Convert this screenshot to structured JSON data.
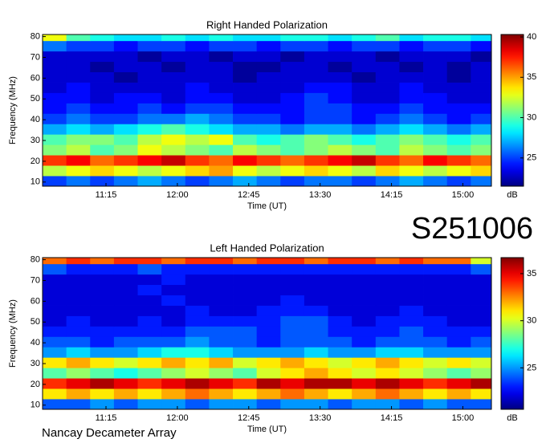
{
  "chart_data": [
    {
      "type": "heatmap",
      "title": "Right Handed Polarization",
      "xlabel": "Time (UT)",
      "ylabel": "Frequency (MHz)",
      "x_bins": [
        635,
        650,
        665,
        680,
        695,
        710,
        725,
        740,
        755,
        770,
        785,
        800,
        815,
        830,
        845,
        860,
        875,
        890,
        905,
        918
      ],
      "y_bins": [
        8,
        13,
        18,
        23,
        28,
        33,
        38,
        43,
        48,
        53,
        58,
        63,
        68,
        73,
        78,
        81
      ],
      "values": [
        [
          25,
          26,
          25,
          26,
          27,
          26,
          25,
          26,
          27,
          26,
          25,
          26,
          26,
          25,
          26,
          27,
          26,
          25,
          26
        ],
        [
          32,
          33,
          34,
          33,
          32,
          33,
          34,
          35,
          33,
          32,
          33,
          34,
          33,
          32,
          34,
          33,
          32,
          33,
          34
        ],
        [
          37,
          38,
          36,
          37,
          38,
          39,
          37,
          36,
          38,
          37,
          36,
          37,
          38,
          39,
          37,
          36,
          38,
          37,
          36
        ],
        [
          31,
          32,
          30,
          31,
          33,
          32,
          31,
          30,
          32,
          31,
          30,
          31,
          32,
          31,
          30,
          32,
          31,
          30,
          31
        ],
        [
          30,
          31,
          31,
          30,
          32,
          33,
          32,
          33,
          30,
          29,
          30,
          31,
          30,
          29,
          30,
          31,
          30,
          29,
          30
        ],
        [
          27,
          28,
          27,
          28,
          29,
          30,
          29,
          28,
          27,
          27,
          26,
          27,
          27,
          26,
          27,
          28,
          27,
          26,
          27
        ],
        [
          25,
          26,
          25,
          25,
          26,
          26,
          27,
          26,
          25,
          25,
          24,
          25,
          25,
          24,
          25,
          26,
          25,
          24,
          25
        ],
        [
          24,
          25,
          24,
          24,
          25,
          24,
          25,
          25,
          24,
          24,
          24,
          25,
          25,
          24,
          24,
          25,
          24,
          24,
          24
        ],
        [
          24,
          24,
          23,
          24,
          24,
          23,
          24,
          24,
          23,
          23,
          24,
          25,
          24,
          23,
          23,
          24,
          24,
          23,
          23
        ],
        [
          23,
          24,
          23,
          23,
          23,
          23,
          24,
          23,
          23,
          23,
          23,
          24,
          24,
          23,
          23,
          24,
          23,
          23,
          23
        ],
        [
          23,
          23,
          23,
          22,
          23,
          23,
          23,
          23,
          22,
          23,
          23,
          23,
          23,
          22,
          23,
          23,
          23,
          22,
          23
        ],
        [
          23,
          23,
          22,
          23,
          23,
          22,
          23,
          23,
          22,
          22,
          23,
          23,
          22,
          23,
          23,
          22,
          23,
          22,
          23
        ],
        [
          23,
          23,
          23,
          23,
          22,
          23,
          23,
          22,
          23,
          23,
          22,
          23,
          23,
          23,
          22,
          23,
          23,
          23,
          22
        ],
        [
          26,
          25,
          25,
          24,
          25,
          25,
          24,
          25,
          25,
          24,
          25,
          25,
          24,
          25,
          25,
          24,
          25,
          25,
          24
        ],
        [
          33,
          30,
          29,
          28,
          28,
          29,
          28,
          29,
          28,
          28,
          29,
          29,
          28,
          29,
          30,
          28,
          29,
          29,
          28
        ]
      ],
      "xlim": [
        635,
        918
      ],
      "xticks": [
        {
          "value": 675,
          "label": "11:15"
        },
        {
          "value": 720,
          "label": "12:00"
        },
        {
          "value": 765,
          "label": "12:45"
        },
        {
          "value": 810,
          "label": "13:30"
        },
        {
          "value": 855,
          "label": "14:15"
        },
        {
          "value": 900,
          "label": "15:00"
        }
      ],
      "ylim": [
        8,
        81
      ],
      "yticks": [
        10,
        20,
        30,
        40,
        50,
        60,
        70,
        80
      ],
      "colorbar": {
        "label": "dB",
        "colormap": "jet",
        "clim": [
          21.5,
          40.3
        ],
        "ticks": [
          25,
          30,
          35,
          40
        ]
      }
    },
    {
      "type": "heatmap",
      "title": "Left Handed Polarization",
      "xlabel": "Time (UT)",
      "ylabel": "Frequency (MHz)",
      "x_bins": [
        635,
        650,
        665,
        680,
        695,
        710,
        725,
        740,
        755,
        770,
        785,
        800,
        815,
        830,
        845,
        860,
        875,
        890,
        905,
        918
      ],
      "y_bins": [
        8,
        13,
        18,
        23,
        28,
        33,
        38,
        43,
        48,
        53,
        58,
        63,
        68,
        73,
        78,
        81
      ],
      "values": [
        [
          24,
          24,
          25,
          24,
          25,
          25,
          24,
          25,
          25,
          24,
          25,
          25,
          24,
          25,
          25,
          24,
          25,
          24,
          24
        ],
        [
          31,
          32,
          31,
          32,
          31,
          32,
          33,
          32,
          31,
          32,
          33,
          32,
          31,
          32,
          33,
          32,
          31,
          32,
          31
        ],
        [
          34,
          35,
          36,
          35,
          34,
          35,
          36,
          35,
          34,
          36,
          35,
          36,
          36,
          35,
          36,
          35,
          34,
          35,
          36
        ],
        [
          28,
          29,
          28,
          27,
          28,
          29,
          30,
          29,
          28,
          30,
          31,
          32,
          31,
          30,
          31,
          30,
          29,
          28,
          29
        ],
        [
          31,
          32,
          31,
          30,
          31,
          32,
          31,
          32,
          30,
          31,
          32,
          31,
          30,
          31,
          32,
          31,
          30,
          31,
          30
        ],
        [
          25,
          26,
          25,
          25,
          26,
          27,
          27,
          26,
          25,
          25,
          25,
          26,
          25,
          25,
          26,
          26,
          25,
          25,
          25
        ],
        [
          24,
          24,
          23,
          24,
          24,
          24,
          25,
          24,
          24,
          23,
          24,
          24,
          24,
          23,
          24,
          24,
          24,
          23,
          24
        ],
        [
          23,
          23,
          23,
          23,
          23,
          23,
          24,
          24,
          24,
          23,
          24,
          24,
          23,
          23,
          23,
          24,
          23,
          23,
          23
        ],
        [
          22,
          23,
          22,
          22,
          23,
          22,
          23,
          23,
          23,
          23,
          24,
          24,
          23,
          22,
          23,
          23,
          23,
          22,
          22
        ],
        [
          22,
          22,
          22,
          22,
          22,
          22,
          23,
          22,
          22,
          23,
          23,
          23,
          22,
          22,
          22,
          23,
          22,
          22,
          22
        ],
        [
          22,
          22,
          22,
          22,
          22,
          23,
          22,
          22,
          22,
          22,
          23,
          22,
          22,
          22,
          22,
          22,
          22,
          22,
          22
        ],
        [
          22,
          22,
          22,
          22,
          23,
          22,
          22,
          22,
          22,
          22,
          22,
          22,
          22,
          22,
          22,
          22,
          22,
          22,
          22
        ],
        [
          22,
          22,
          22,
          22,
          22,
          23,
          22,
          22,
          22,
          22,
          22,
          22,
          22,
          22,
          22,
          22,
          22,
          22,
          22
        ],
        [
          24,
          23,
          23,
          23,
          24,
          23,
          23,
          23,
          23,
          23,
          23,
          23,
          23,
          23,
          23,
          23,
          23,
          23,
          24
        ],
        [
          33,
          34,
          33,
          34,
          34,
          33,
          34,
          34,
          33,
          34,
          34,
          33,
          34,
          34,
          33,
          34,
          33,
          33,
          30
        ]
      ],
      "xlim": [
        635,
        918
      ],
      "xticks": [
        {
          "value": 675,
          "label": "11:15"
        },
        {
          "value": 720,
          "label": "12:00"
        },
        {
          "value": 765,
          "label": "12:45"
        },
        {
          "value": 810,
          "label": "13:30"
        },
        {
          "value": 855,
          "label": "14:15"
        },
        {
          "value": 900,
          "label": "15:00"
        }
      ],
      "ylim": [
        8,
        81
      ],
      "yticks": [
        10,
        20,
        30,
        40,
        50,
        60,
        70,
        80
      ],
      "colorbar": {
        "label": "dB",
        "colormap": "jet",
        "clim": [
          20.6,
          36.7
        ],
        "ticks": [
          25,
          30,
          35
        ]
      }
    }
  ],
  "annotations": {
    "id": "S251006",
    "footer": "Nancay Decameter Array"
  }
}
